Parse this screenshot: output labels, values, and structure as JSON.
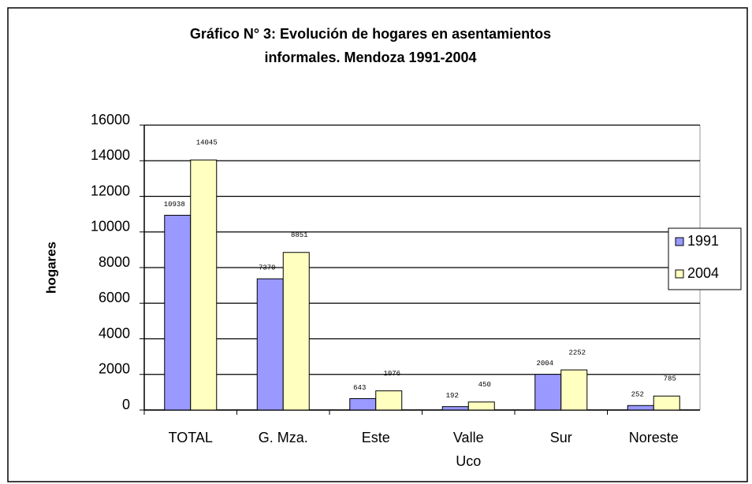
{
  "chart_data": {
    "type": "bar",
    "title": [
      "Gráfico N° 3: Evolución de hogares en asentamientos",
      "informales. Mendoza 1991-2004"
    ],
    "ylabel": "hogares",
    "categories": [
      [
        "TOTAL"
      ],
      [
        "G. Mza."
      ],
      [
        "Este"
      ],
      [
        "Valle",
        "Uco"
      ],
      [
        "Sur"
      ],
      [
        "Noreste"
      ]
    ],
    "series": [
      {
        "name": "1991",
        "color": "#9999ff",
        "values": [
          10938,
          7370,
          643,
          192,
          2004,
          252
        ]
      },
      {
        "name": "2004",
        "color": "#ffffc0",
        "values": [
          14045,
          8851,
          1076,
          450,
          2252,
          785
        ]
      }
    ],
    "ylim": [
      0,
      16000
    ],
    "yticks": [
      0,
      2000,
      4000,
      6000,
      8000,
      10000,
      12000,
      14000,
      16000
    ],
    "grid": true,
    "legend": "right"
  }
}
